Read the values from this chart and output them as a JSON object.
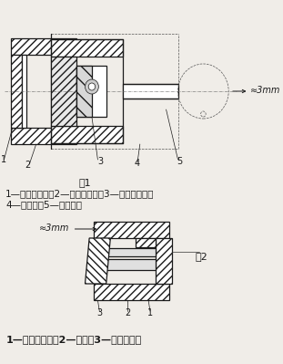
{
  "fig1_label": "图1",
  "fig2_label": "图2",
  "caption1_line1": "1—滚筒传动轴；2—内外花键套；3—内六角耶钉；",
  "caption1_line2": "4—作紧台；5—电机主轴",
  "caption2": "1—固定刹车环；2—弹簧；3—电机后端盖",
  "dim1": "≈3mm",
  "dim2": "≈3mm",
  "bg_color": "#f0ede8",
  "line_color": "#1a1a1a",
  "font_size_caption": 7.5,
  "font_size_num": 7,
  "font_size_fig": 8,
  "font_size_dim": 7
}
